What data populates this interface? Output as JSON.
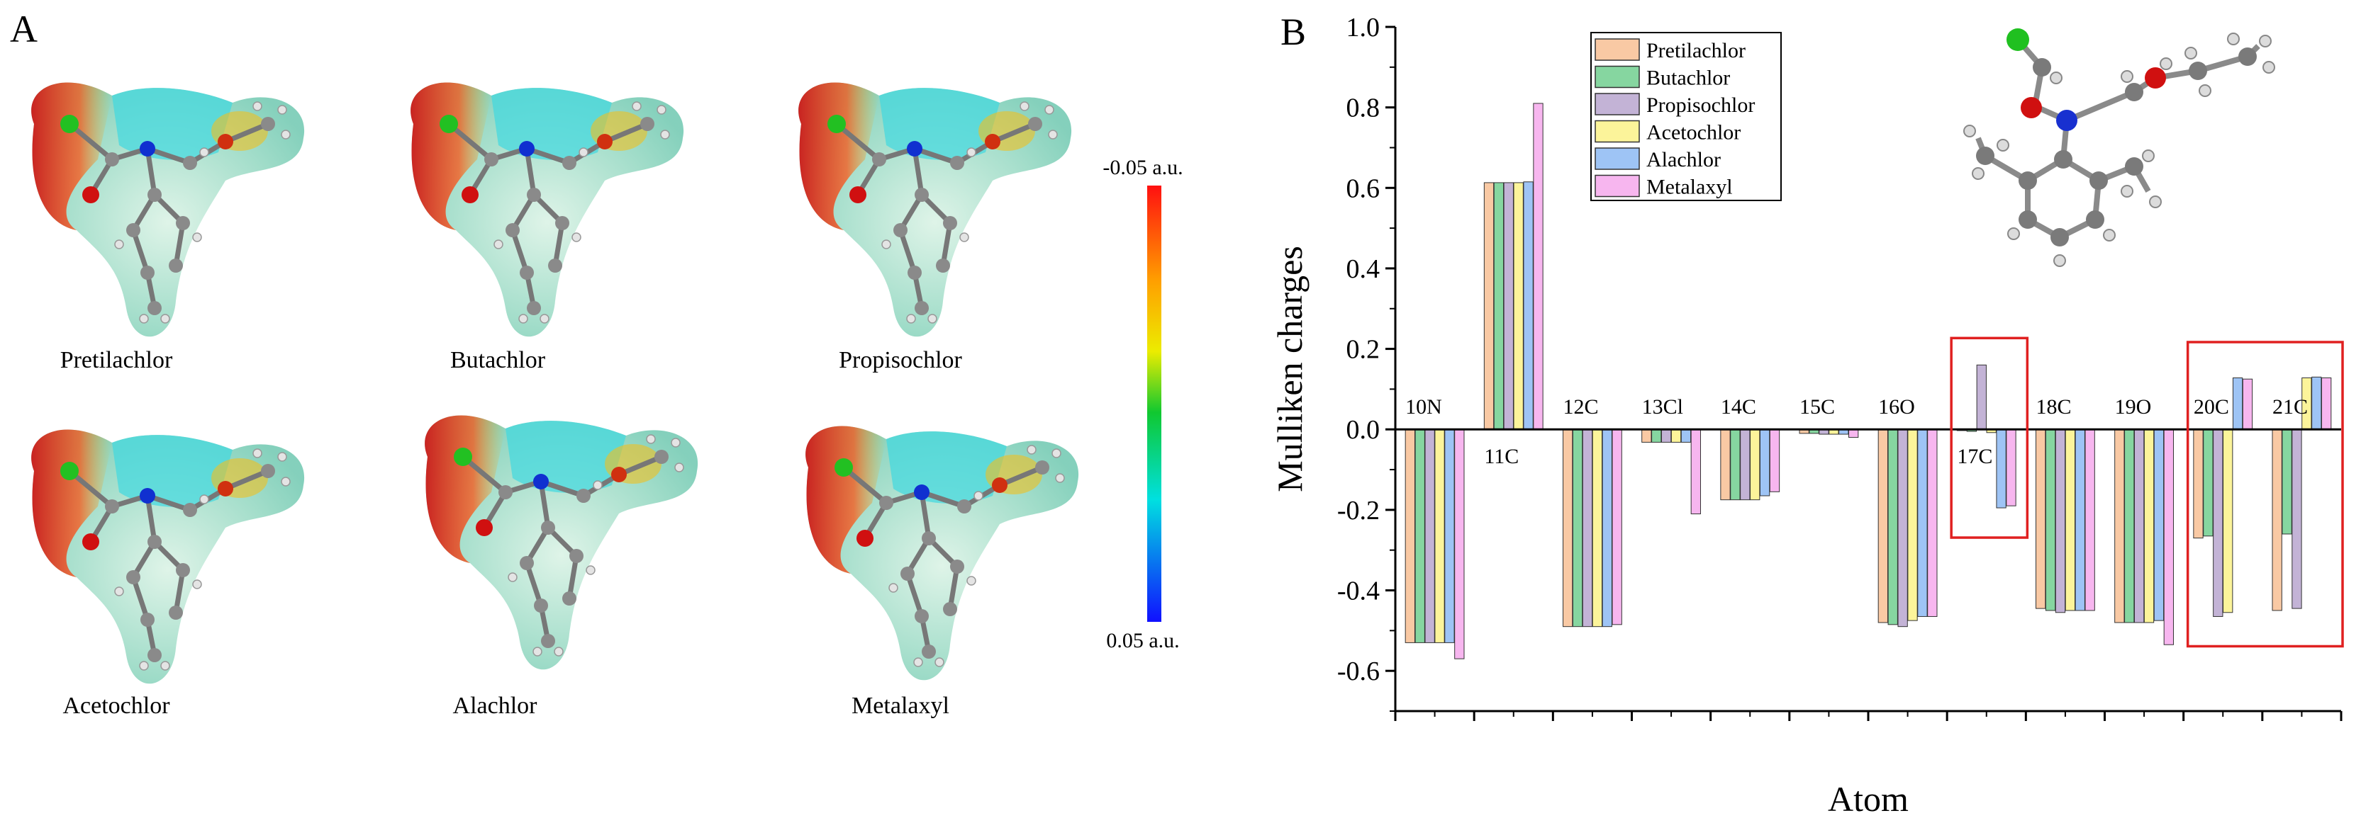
{
  "panel_a": {
    "letter": "A",
    "molecules": [
      "Pretilachlor",
      "Butachlor",
      "Propisochlor",
      "Acetochlor",
      "Alachlor",
      "Metalaxyl"
    ],
    "colorbar": {
      "top_label": "-0.05 a.u.",
      "bottom_label": "0.05 a.u."
    }
  },
  "panel_b": {
    "letter": "B"
  },
  "colors": {
    "Pretilachlor": "#f9c9a4",
    "Butachlor": "#86d6a0",
    "Propisochlor": "#c3b3d6",
    "Acetochlor": "#fcf49a",
    "Alachlor": "#9ec4f5",
    "Metalaxyl": "#f7b6ef",
    "highlight": "#e02020"
  },
  "chart_data": {
    "type": "bar",
    "xlabel": "Atom",
    "ylabel": "Mulliken charges",
    "ylim": [
      -0.7,
      1.0
    ],
    "yticks": [
      "1.0",
      "0.8",
      "0.6",
      "0.4",
      "0.2",
      "0.0",
      "-0.2",
      "-0.4",
      "-0.6"
    ],
    "categories": [
      "10N",
      "11C",
      "12C",
      "13Cl",
      "14C",
      "15C",
      "16O",
      "17C",
      "18C",
      "19O",
      "20C",
      "21C"
    ],
    "series": [
      {
        "name": "Pretilachlor",
        "values": [
          -0.53,
          0.613,
          -0.49,
          -0.032,
          -0.175,
          -0.01,
          -0.48,
          -0.003,
          -0.445,
          -0.48,
          -0.27,
          -0.45
        ]
      },
      {
        "name": "Butachlor",
        "values": [
          -0.53,
          0.613,
          -0.49,
          -0.032,
          -0.175,
          -0.01,
          -0.485,
          -0.005,
          -0.45,
          -0.48,
          -0.265,
          -0.26
        ]
      },
      {
        "name": "Propisochlor",
        "values": [
          -0.53,
          0.613,
          -0.49,
          -0.032,
          -0.175,
          -0.012,
          -0.49,
          0.16,
          -0.455,
          -0.48,
          -0.465,
          -0.445
        ]
      },
      {
        "name": "Acetochlor",
        "values": [
          -0.53,
          0.613,
          -0.49,
          -0.032,
          -0.175,
          -0.012,
          -0.475,
          -0.008,
          -0.45,
          -0.48,
          -0.455,
          0.128
        ]
      },
      {
        "name": "Alachlor",
        "values": [
          -0.53,
          0.615,
          -0.49,
          -0.032,
          -0.165,
          -0.012,
          -0.465,
          -0.195,
          -0.45,
          -0.475,
          0.128,
          0.13
        ]
      },
      {
        "name": "Metalaxyl",
        "values": [
          -0.57,
          0.81,
          -0.485,
          -0.21,
          -0.155,
          -0.02,
          -0.465,
          -0.19,
          -0.45,
          -0.535,
          0.125,
          0.128
        ]
      }
    ],
    "highlighted_groups": [
      [
        "17C"
      ],
      [
        "20C",
        "21C"
      ]
    ]
  }
}
